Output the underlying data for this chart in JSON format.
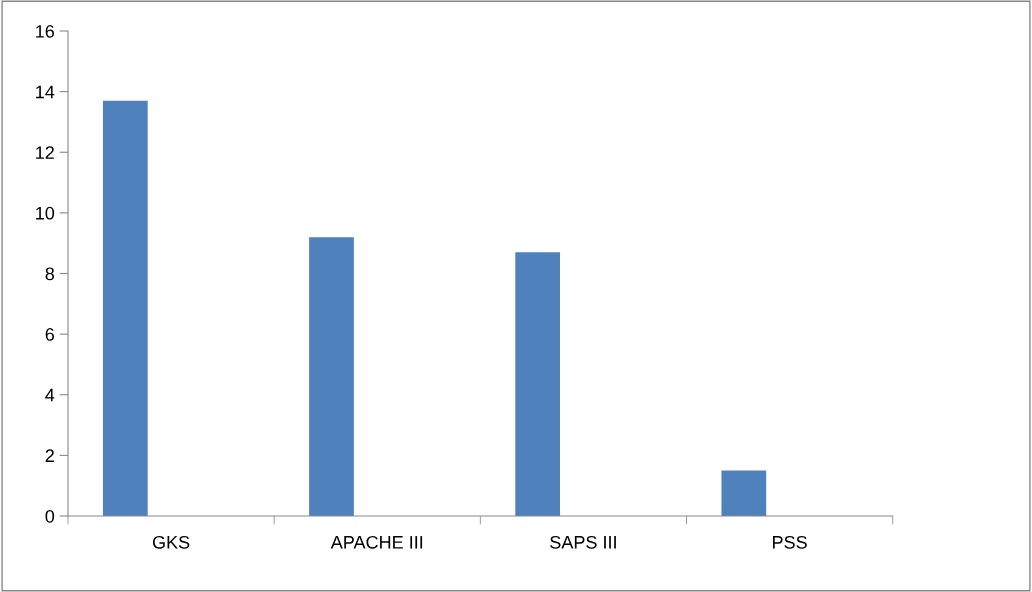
{
  "chart_data": {
    "type": "bar",
    "categories": [
      "GKS",
      "APACHE III",
      "SAPS III",
      "PSS"
    ],
    "values": [
      13.7,
      9.2,
      8.7,
      1.5
    ],
    "color": "#4f81bd",
    "ylim": [
      0,
      16
    ],
    "yticks": [
      0,
      2,
      4,
      6,
      8,
      10,
      12,
      14,
      16
    ],
    "grid": false,
    "legend": false
  }
}
